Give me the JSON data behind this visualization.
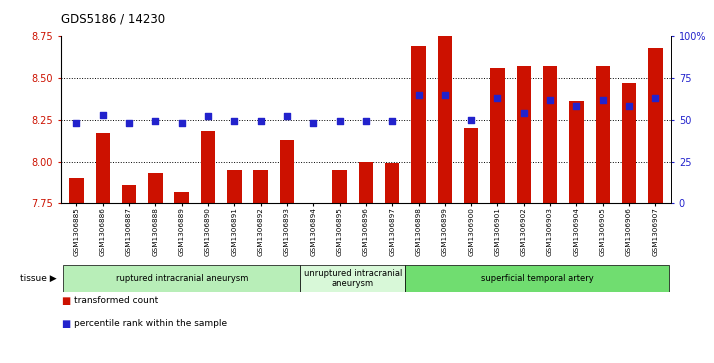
{
  "title": "GDS5186 / 14230",
  "samples": [
    "GSM1306885",
    "GSM1306886",
    "GSM1306887",
    "GSM1306888",
    "GSM1306889",
    "GSM1306890",
    "GSM1306891",
    "GSM1306892",
    "GSM1306893",
    "GSM1306894",
    "GSM1306895",
    "GSM1306896",
    "GSM1306897",
    "GSM1306898",
    "GSM1306899",
    "GSM1306900",
    "GSM1306901",
    "GSM1306902",
    "GSM1306903",
    "GSM1306904",
    "GSM1306905",
    "GSM1306906",
    "GSM1306907"
  ],
  "transformed_count": [
    7.9,
    8.17,
    7.86,
    7.93,
    7.82,
    8.18,
    7.95,
    7.95,
    8.13,
    7.75,
    7.95,
    8.0,
    7.99,
    8.69,
    8.75,
    8.2,
    8.56,
    8.57,
    8.57,
    8.36,
    8.57,
    8.47,
    8.68
  ],
  "percentile_rank": [
    48,
    53,
    48,
    49,
    48,
    52,
    49,
    49,
    52,
    48,
    49,
    49,
    49,
    65,
    65,
    50,
    63,
    54,
    62,
    58,
    62,
    58,
    63
  ],
  "groups": [
    {
      "label": "ruptured intracranial aneurysm",
      "start": 0,
      "end": 9,
      "color": "#b8eeb8"
    },
    {
      "label": "unruptured intracranial\naneurysm",
      "start": 9,
      "end": 13,
      "color": "#d8f8d8"
    },
    {
      "label": "superficial temporal artery",
      "start": 13,
      "end": 23,
      "color": "#70dd70"
    }
  ],
  "ylim_left": [
    7.75,
    8.75
  ],
  "ylim_right": [
    0,
    100
  ],
  "yticks_left": [
    7.75,
    8.0,
    8.25,
    8.5,
    8.75
  ],
  "yticks_right": [
    0,
    25,
    50,
    75,
    100
  ],
  "ytick_labels_right": [
    "0",
    "25",
    "50",
    "75",
    "100%"
  ],
  "bar_color": "#cc1100",
  "dot_color": "#2222cc",
  "plot_bg": "#ffffff",
  "legend": [
    {
      "label": "transformed count",
      "color": "#cc1100"
    },
    {
      "label": "percentile rank within the sample",
      "color": "#2222cc"
    }
  ],
  "bar_width": 0.55,
  "dot_size": 18,
  "left_tick_color": "#cc1100",
  "right_tick_color": "#2222cc",
  "grid_yticks": [
    8.0,
    8.25,
    8.5
  ]
}
